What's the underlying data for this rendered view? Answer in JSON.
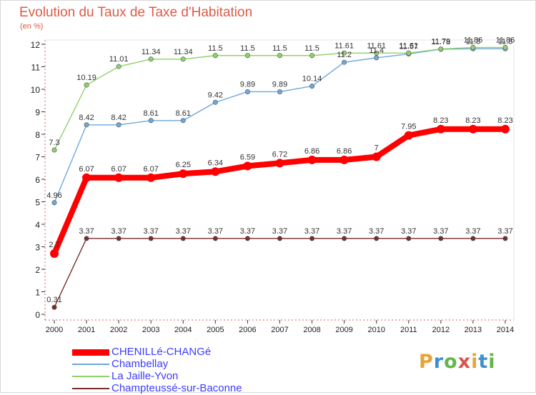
{
  "header": {
    "title": "Evolution du Taux de Taxe d'Habitation",
    "unit": "(en %)"
  },
  "brand": {
    "letters": [
      "P",
      "r",
      "o",
      "x",
      "i",
      "t",
      "i"
    ],
    "colors": [
      "#e8a33b",
      "#3e8fd1",
      "#64b54a",
      "#d9534f",
      "#e8a33b",
      "#3e8fd1",
      "#64b54a"
    ]
  },
  "chart_data": {
    "type": "line",
    "title": "Evolution du Taux de Taxe d'Habitation",
    "ylabel": "(en %)",
    "xlabel": "",
    "x": [
      2000,
      2001,
      2002,
      2003,
      2004,
      2005,
      2006,
      2007,
      2008,
      2009,
      2010,
      2011,
      2012,
      2013,
      2014
    ],
    "ylim": [
      0,
      12
    ],
    "yticks": [
      0,
      1,
      2,
      3,
      4,
      5,
      6,
      7,
      8,
      9,
      10,
      11,
      12
    ],
    "grid": false,
    "legend_position": "bottom-left",
    "series": [
      {
        "name": "CHENILLé-CHANGé",
        "color": "#ff0000",
        "values": [
          2.7,
          6.07,
          6.07,
          6.07,
          6.25,
          6.34,
          6.59,
          6.72,
          6.86,
          6.86,
          7,
          7.95,
          8.23,
          8.23,
          8.23
        ],
        "labels": [
          "2.7",
          "6.07",
          "6.07",
          "6.07",
          "6.25",
          "6.34",
          "6.59",
          "6.72",
          "6.86",
          "6.86",
          "7",
          "7.95",
          "8.23",
          "8.23",
          "8.23"
        ]
      },
      {
        "name": "Chambellay",
        "color": "#6fa8dc",
        "values": [
          4.96,
          8.42,
          8.42,
          8.61,
          8.61,
          9.42,
          9.89,
          9.89,
          10.14,
          11.2,
          11.4,
          11.57,
          11.78,
          11.8,
          11.8
        ],
        "labels": [
          "4.96",
          "8.42",
          "8.42",
          "8.61",
          "8.61",
          "9.42",
          "9.89",
          "9.89",
          "10.14",
          "11.2",
          "11.4",
          "11.57",
          "11.78",
          "11.8",
          "11.8"
        ]
      },
      {
        "name": "La Jaille-Yvon",
        "color": "#8fd16a",
        "values": [
          7.3,
          10.19,
          11.01,
          11.34,
          11.34,
          11.5,
          11.5,
          11.5,
          11.5,
          11.61,
          11.61,
          11.61,
          11.79,
          11.86,
          11.86
        ],
        "labels": [
          "7.3",
          "10.19",
          "11.01",
          "11.34",
          "11.34",
          "11.5",
          "11.5",
          "11.5",
          "11.5",
          "11.61",
          "11.61",
          "11.61",
          "11.79",
          "11.86",
          "11.86"
        ]
      },
      {
        "name": "Champteussé-sur-Baconne",
        "color": "#7a2c2c",
        "values": [
          0.31,
          3.37,
          3.37,
          3.37,
          3.37,
          3.37,
          3.37,
          3.37,
          3.37,
          3.37,
          3.37,
          3.37,
          3.37,
          3.37,
          3.37
        ],
        "labels": [
          "0.31",
          "3.37",
          "3.37",
          "3.37",
          "3.37",
          "3.37",
          "3.37",
          "3.37",
          "3.37",
          "3.37",
          "3.37",
          "3.37",
          "3.37",
          "3.37",
          "3.37"
        ]
      }
    ]
  }
}
